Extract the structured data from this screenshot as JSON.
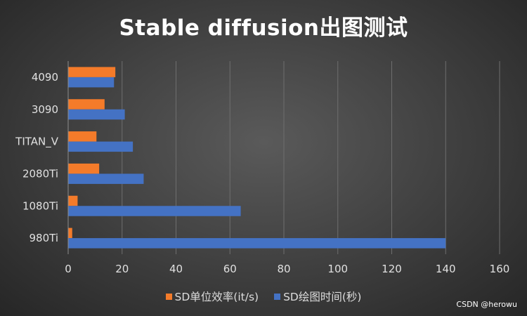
{
  "chart_data": {
    "type": "bar",
    "orientation": "horizontal",
    "title": "Stable diffusion出图测试",
    "categories": [
      "4090",
      "3090",
      "TITAN_V",
      "2080Ti",
      "1080Ti",
      "980Ti"
    ],
    "series": [
      {
        "name": "SD单位效率(it/s)",
        "color": "#f47b2a",
        "values": [
          17.5,
          13.5,
          10.5,
          11.5,
          3.5,
          1.5
        ]
      },
      {
        "name": "SD绘图时间(秒)",
        "color": "#4472c4",
        "values": [
          17,
          21,
          24,
          28,
          64,
          140
        ]
      }
    ],
    "xlim": [
      0,
      160
    ],
    "xticks": [
      0,
      20,
      40,
      60,
      80,
      100,
      120,
      140,
      160
    ],
    "grid": true,
    "legend_position": "bottom",
    "xlabel": "",
    "ylabel": ""
  },
  "watermark": "CSDN @herowu",
  "colors": {
    "gridline": "#6e6e6e",
    "axis": "#8c8c8c",
    "tick_label": "#e0e0e0"
  }
}
